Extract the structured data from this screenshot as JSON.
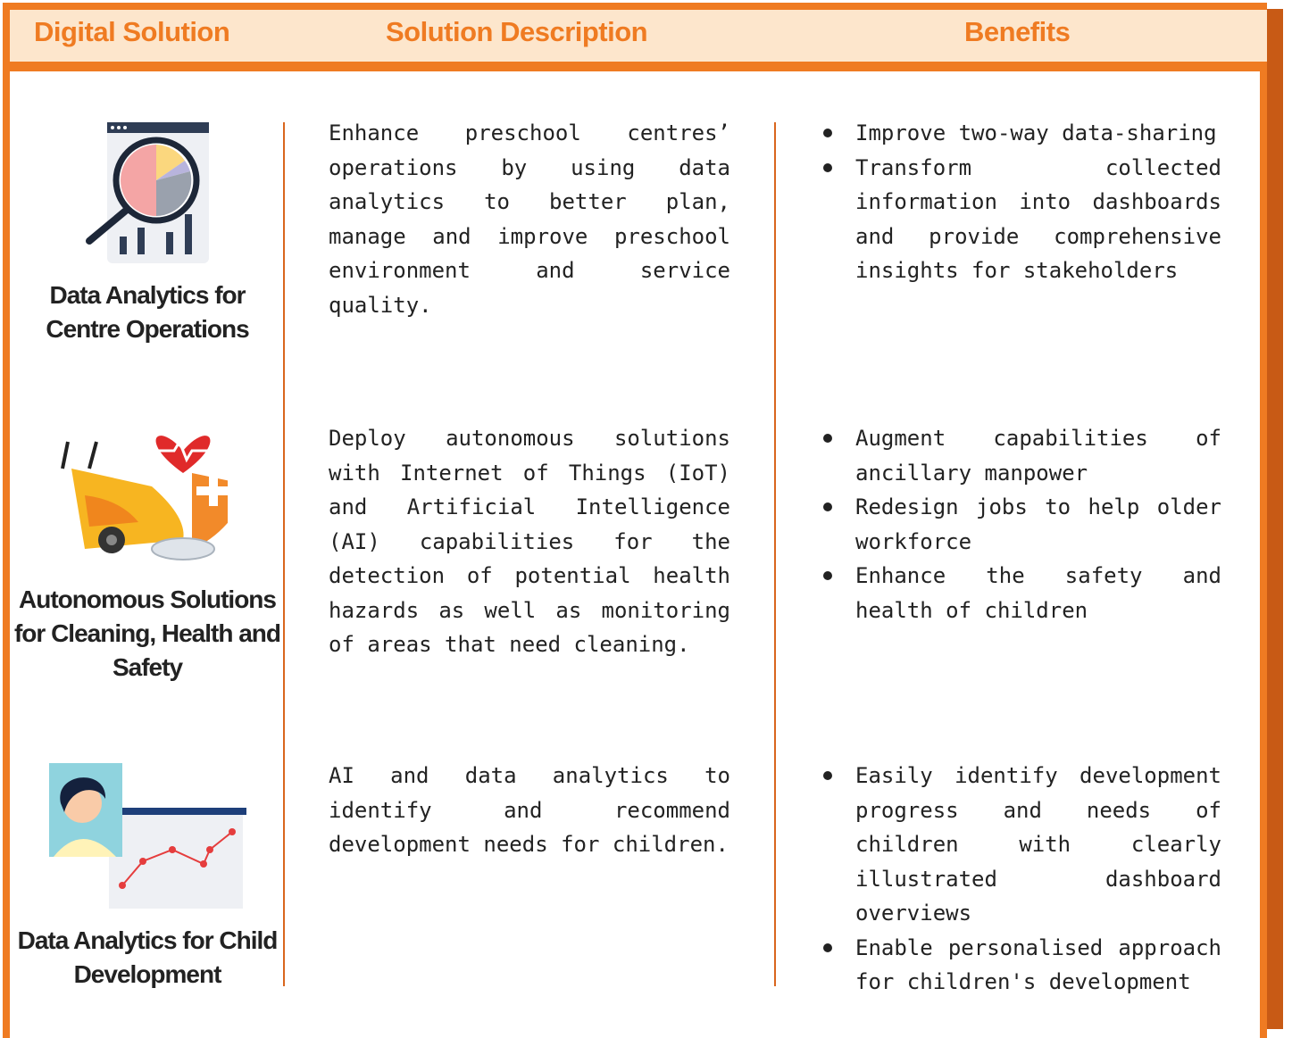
{
  "header": {
    "columns": [
      "Digital Solution",
      "Solution Description",
      "Benefits"
    ]
  },
  "rows": [
    {
      "name": "Data Analytics for Centre Operations",
      "description": "Enhance preschool centres’ operations by using data analytics to better plan, manage and improve preschool environment and service quality.",
      "benefits": [
        "Improve two-way data-sharing",
        "Transform collected information into dashboards and provide comprehensive insights for stakeholders"
      ]
    },
    {
      "name": "Autonomous Solutions for Cleaning, Health and Safety",
      "description": "Deploy autonomous solutions with Internet of Things (IoT) and Artificial Intelligence (AI) capabilities for the detection of potential health hazards as well as monitoring of areas that need cleaning.",
      "benefits": [
        "Augment capabilities of ancillary manpower",
        "Redesign jobs to help older workforce",
        "Enhance the safety and health of children"
      ]
    },
    {
      "name": "Data Analytics for Child Development",
      "description": "AI and data analytics to identify and recommend development needs for children.",
      "benefits": [
        "Easily identify development progress and needs of children with clearly illustrated dashboard overviews",
        "Enable personalised approach for children's development"
      ]
    }
  ]
}
